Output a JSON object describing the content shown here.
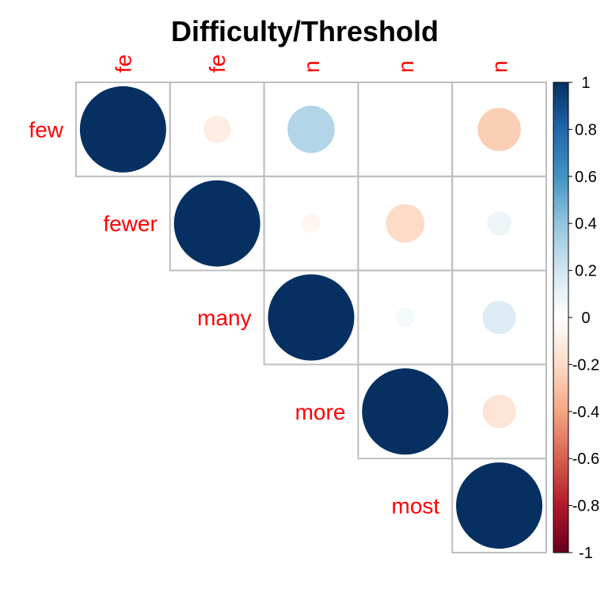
{
  "chart_data": {
    "type": "heatmap",
    "title": "Difficulty/Threshold",
    "variables": [
      "few",
      "fewer",
      "many",
      "more",
      "most"
    ],
    "column_labels": [
      "fe",
      "fe",
      "n",
      "n",
      "n"
    ],
    "label_color": "#FF0000",
    "layout": "upper-triangle",
    "glyph": "circle",
    "matrix": [
      [
        1.0,
        -0.1,
        0.3,
        0.0,
        -0.25
      ],
      [
        -0.1,
        1.0,
        -0.05,
        -0.2,
        0.08
      ],
      [
        0.3,
        -0.05,
        1.0,
        0.05,
        0.15
      ],
      [
        0.0,
        -0.2,
        0.05,
        1.0,
        -0.15
      ],
      [
        -0.25,
        0.08,
        0.15,
        -0.15,
        1.0
      ]
    ],
    "colorbar": {
      "range": [
        -1,
        1
      ],
      "ticks": [
        "1",
        "0.8",
        "0.6",
        "0.4",
        "0.2",
        "0",
        "-0.2",
        "-0.4",
        "-0.6",
        "-0.8",
        "-1"
      ],
      "palette": [
        "#67001F",
        "#B2182B",
        "#D6604D",
        "#F4A582",
        "#FDDBC7",
        "#FFFFFF",
        "#D1E5F0",
        "#92C5DE",
        "#4393C3",
        "#2166AC",
        "#053061"
      ]
    },
    "grid_color": "#BEBEBE"
  }
}
